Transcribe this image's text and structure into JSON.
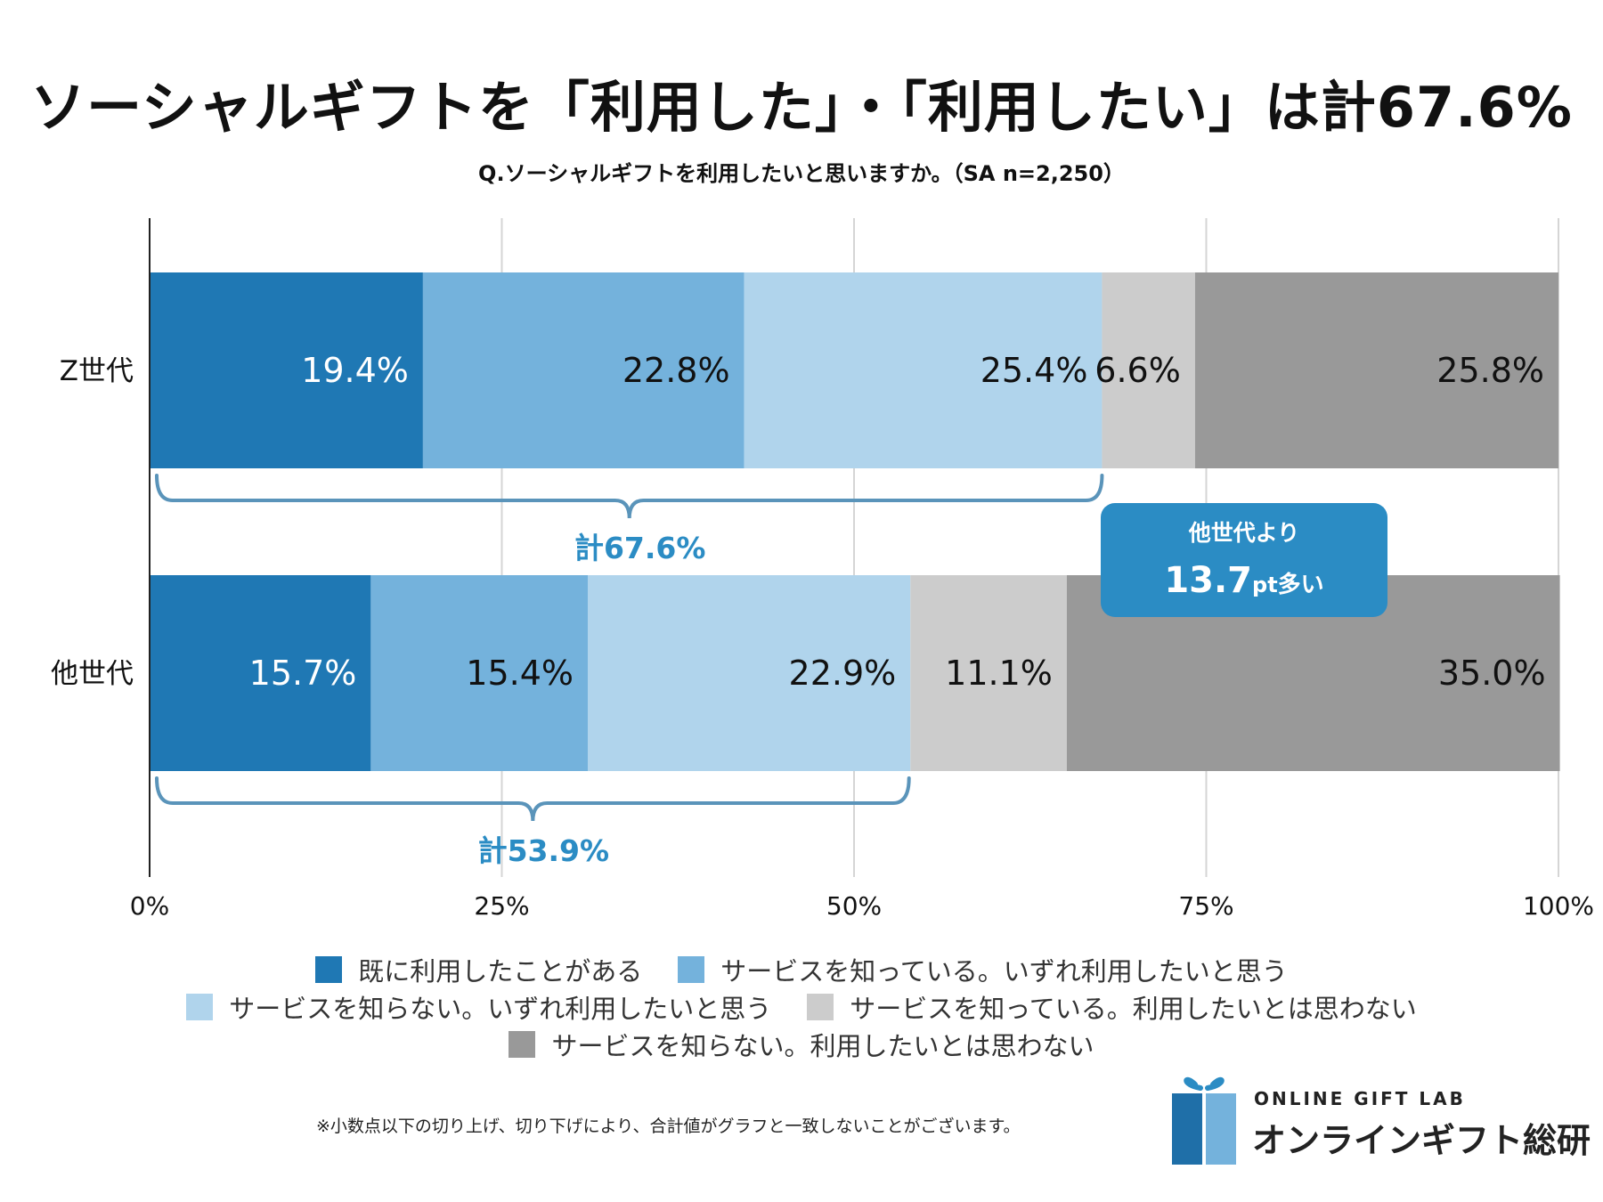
{
  "title": "ソーシャルギフトを「利用した」・「利用したい」は計67.6%",
  "subtitle": "Q.ソーシャルギフトを利用したいと思いますか。（SA n=2,250）",
  "chart_data": {
    "type": "bar",
    "orientation": "horizontal",
    "stacked": true,
    "categories": [
      "Z世代",
      "他世代"
    ],
    "series": [
      {
        "name": "既に利用したことがある",
        "values": [
          19.4,
          15.7
        ],
        "labels": [
          "19.4%",
          "15.7%"
        ],
        "color": "#1f78b4",
        "label_color": "#ffffff"
      },
      {
        "name": "サービスを知っている。いずれ利用したいと思う",
        "values": [
          22.8,
          15.4
        ],
        "labels": [
          "22.8%",
          "15.4%"
        ],
        "color": "#74b2dc",
        "label_color": "#111111"
      },
      {
        "name": "サービスを知らない。いずれ利用したいと思う",
        "values": [
          25.4,
          22.9
        ],
        "labels": [
          "25.4%",
          "22.9%"
        ],
        "color": "#b0d4ec",
        "label_color": "#111111"
      },
      {
        "name": "サービスを知っている。利用したいとは思わない",
        "values": [
          6.6,
          11.1
        ],
        "labels": [
          "6.6%",
          "11.1%"
        ],
        "color": "#cccccc",
        "label_color": "#111111"
      },
      {
        "name": "サービスを知らない。利用したいとは思わない",
        "values": [
          25.8,
          35.0
        ],
        "labels": [
          "25.8%",
          "35.0%"
        ],
        "color": "#999999",
        "label_color": "#111111"
      }
    ],
    "xlim": [
      0,
      100
    ],
    "xticks": [
      0,
      25,
      50,
      75,
      100
    ],
    "xtick_labels": [
      "0%",
      "25%",
      "50%",
      "75%",
      "100%"
    ],
    "grid": true,
    "legend": "bottom",
    "annotations": {
      "brackets": [
        {
          "row": 0,
          "from": 0,
          "to": 67.6,
          "label": "計67.6%"
        },
        {
          "row": 1,
          "from": 0,
          "to": 53.9,
          "label": "計53.9%"
        }
      ],
      "callout": {
        "line1": "他世代より",
        "value": "13.7",
        "unit": "pt",
        "suffix": "多い",
        "color": "#2b8cc4"
      }
    }
  },
  "colors": {
    "accent": "#2b8cc4",
    "axis": "#222222",
    "grid": "#d5d5d5"
  },
  "footnote": "※小数点以下の切り上げ、切り下げにより、合計値がグラフと一致しないことがございます。",
  "logo": {
    "name_en": "ONLINE GIFT LAB",
    "name_jp": "オンラインギフト総研",
    "icon": "gift-box-icon"
  }
}
